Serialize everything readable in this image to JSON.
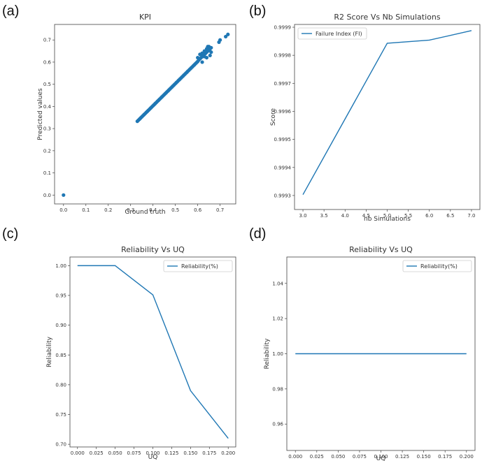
{
  "panels": [
    {
      "label": "(a)"
    },
    {
      "label": "(b)"
    },
    {
      "label": "(c)"
    },
    {
      "label": "(d)"
    }
  ],
  "chart_data": [
    {
      "type": "scatter",
      "title": "KPI",
      "xlabel": "Ground truth",
      "ylabel": "Predicted values",
      "xlim": [
        -0.04,
        0.77
      ],
      "ylim": [
        -0.04,
        0.77
      ],
      "xticks": [
        "0.0",
        "0.1",
        "0.2",
        "0.3",
        "0.4",
        "0.5",
        "0.6",
        "0.7"
      ],
      "yticks": [
        "0.0",
        "0.1",
        "0.2",
        "0.3",
        "0.4",
        "0.5",
        "0.6",
        "0.7"
      ],
      "grid": false,
      "color": "#1f77b4",
      "series": [
        {
          "x": [
            0.0,
            0.33,
            0.335,
            0.34,
            0.345,
            0.35,
            0.355,
            0.36,
            0.365,
            0.37,
            0.375,
            0.38,
            0.385,
            0.39,
            0.395,
            0.4,
            0.405,
            0.41,
            0.415,
            0.42,
            0.425,
            0.43,
            0.435,
            0.44,
            0.445,
            0.45,
            0.455,
            0.46,
            0.465,
            0.47,
            0.475,
            0.48,
            0.485,
            0.49,
            0.495,
            0.5,
            0.505,
            0.51,
            0.515,
            0.52,
            0.525,
            0.53,
            0.535,
            0.54,
            0.545,
            0.55,
            0.555,
            0.56,
            0.565,
            0.57,
            0.575,
            0.58,
            0.585,
            0.59,
            0.595,
            0.6,
            0.605,
            0.61,
            0.615,
            0.62,
            0.625,
            0.63,
            0.635,
            0.64,
            0.645,
            0.65,
            0.655,
            0.66,
            0.6,
            0.61,
            0.62,
            0.63,
            0.64,
            0.65,
            0.62,
            0.64,
            0.655,
            0.645,
            0.66,
            0.63,
            0.695,
            0.7,
            0.725,
            0.735
          ],
          "y": [
            0.0,
            0.333,
            0.338,
            0.343,
            0.348,
            0.353,
            0.358,
            0.363,
            0.368,
            0.373,
            0.378,
            0.383,
            0.388,
            0.393,
            0.398,
            0.403,
            0.408,
            0.413,
            0.418,
            0.423,
            0.428,
            0.433,
            0.438,
            0.443,
            0.448,
            0.453,
            0.458,
            0.463,
            0.468,
            0.473,
            0.478,
            0.483,
            0.488,
            0.493,
            0.498,
            0.503,
            0.508,
            0.513,
            0.518,
            0.523,
            0.528,
            0.533,
            0.538,
            0.543,
            0.548,
            0.553,
            0.558,
            0.563,
            0.568,
            0.573,
            0.578,
            0.583,
            0.588,
            0.593,
            0.598,
            0.603,
            0.61,
            0.615,
            0.62,
            0.625,
            0.63,
            0.635,
            0.64,
            0.645,
            0.65,
            0.655,
            0.66,
            0.665,
            0.62,
            0.635,
            0.64,
            0.65,
            0.66,
            0.67,
            0.6,
            0.62,
            0.63,
            0.67,
            0.645,
            0.625,
            0.69,
            0.7,
            0.715,
            0.725
          ]
        }
      ]
    },
    {
      "type": "line",
      "title": "R2 Score Vs Nb Simulations",
      "xlabel": "nb Simulations",
      "ylabel": "Score",
      "xlim": [
        2.8,
        7.2
      ],
      "ylim": [
        0.99925,
        0.99991
      ],
      "xticks": [
        "3.0",
        "3.5",
        "4.0",
        "4.5",
        "5.0",
        "5.5",
        "6.0",
        "6.5",
        "7.0"
      ],
      "yticks": [
        "0.9993",
        "0.9994",
        "0.9995",
        "0.9996",
        "0.9997",
        "0.9998",
        "0.9999"
      ],
      "legend": "top-left",
      "grid": false,
      "series": [
        {
          "name": "Failure Index (FI)",
          "color": "#1f77b4",
          "x": [
            3,
            5,
            6,
            7
          ],
          "y": [
            0.999303,
            0.999843,
            0.999854,
            0.999888
          ]
        }
      ]
    },
    {
      "type": "line",
      "title": "Reliability Vs UQ",
      "xlabel": "UQ",
      "ylabel": "Reliability",
      "xlim": [
        -0.01,
        0.21
      ],
      "ylim": [
        0.6955,
        1.0145
      ],
      "xticks": [
        "0.000",
        "0.025",
        "0.050",
        "0.075",
        "0.100",
        "0.125",
        "0.150",
        "0.175",
        "0.200"
      ],
      "yticks": [
        "0.70",
        "0.75",
        "0.80",
        "0.85",
        "0.90",
        "0.95",
        "1.00"
      ],
      "legend": "top-right",
      "grid": false,
      "series": [
        {
          "name": "Reliability(%)",
          "color": "#1f77b4",
          "x": [
            0.0,
            0.05,
            0.1,
            0.15,
            0.2
          ],
          "y": [
            1.0,
            1.0,
            0.951,
            0.79,
            0.71
          ]
        }
      ]
    },
    {
      "type": "line",
      "title": "Reliability Vs UQ",
      "xlabel": "UQ",
      "ylabel": "Reliability",
      "xlim": [
        -0.01,
        0.21
      ],
      "ylim": [
        0.945,
        1.055
      ],
      "xticks": [
        "0.000",
        "0.025",
        "0.050",
        "0.075",
        "0.100",
        "0.125",
        "0.150",
        "0.175",
        "0.200"
      ],
      "yticks": [
        "0.96",
        "0.98",
        "1.00",
        "1.02",
        "1.04"
      ],
      "legend": "top-right",
      "grid": false,
      "series": [
        {
          "name": "Reliability(%)",
          "color": "#1f77b4",
          "x": [
            0.0,
            0.05,
            0.1,
            0.15,
            0.2
          ],
          "y": [
            1.0,
            1.0,
            1.0,
            1.0,
            1.0
          ]
        }
      ]
    }
  ]
}
